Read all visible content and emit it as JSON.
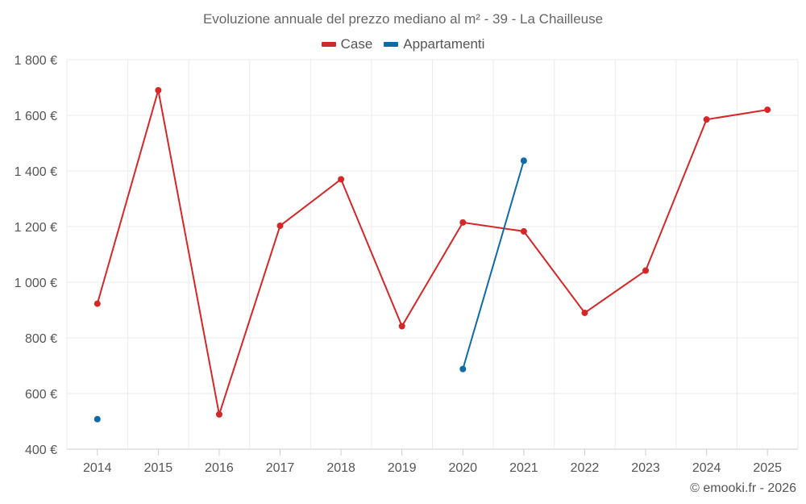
{
  "chart_data": {
    "type": "line",
    "title": "Evoluzione annuale del prezzo mediano al m² - 39 - La Chailleuse",
    "categories": [
      "2014",
      "2015",
      "2016",
      "2017",
      "2018",
      "2019",
      "2020",
      "2021",
      "2022",
      "2023",
      "2024",
      "2025"
    ],
    "ylim": [
      400,
      1800
    ],
    "yticks": [
      400,
      600,
      800,
      1000,
      1200,
      1400,
      1600,
      1800
    ],
    "ytick_labels": [
      "400 €",
      "600 €",
      "800 €",
      "1 000 €",
      "1 200 €",
      "1 400 €",
      "1 600 €",
      "1 800 €"
    ],
    "xlabel": "",
    "ylabel": "",
    "grid": true,
    "legend_position": "top-center",
    "series": [
      {
        "name": "Case",
        "color": "#d62728",
        "values": [
          923,
          1690,
          525,
          1203,
          1370,
          842,
          1215,
          1183,
          890,
          1042,
          1585,
          1620
        ]
      },
      {
        "name": "Appartamenti",
        "color": "#0f6aa6",
        "values": [
          508,
          null,
          null,
          null,
          null,
          null,
          688,
          1437,
          null,
          null,
          null,
          null
        ]
      }
    ]
  },
  "credit": "© emooki.fr - 2026"
}
